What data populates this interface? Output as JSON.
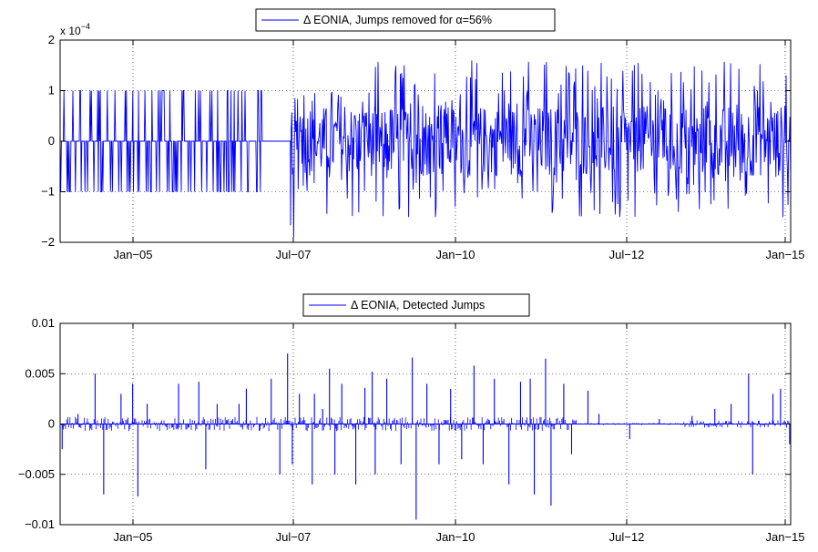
{
  "chart_data": [
    {
      "type": "line",
      "legend": "Δ EONIA, Jumps removed for α=56%",
      "legend_placement": "top-center",
      "xlabel": "",
      "ylabel": "",
      "exponent_label": "x 10",
      "exponent_power": "−4",
      "x_range": [
        "2004-03",
        "2015-01"
      ],
      "ylim": [
        -2,
        2
      ],
      "xticks": [
        "Jan−05",
        "Jul−07",
        "Jan−10",
        "Jul−12",
        "Jan−15"
      ],
      "yticks": [
        {
          "value": 2,
          "label": "2"
        },
        {
          "value": 1,
          "label": "1"
        },
        {
          "value": 0,
          "label": "0"
        },
        {
          "value": -1,
          "label": "−1"
        },
        {
          "value": -2,
          "label": "−2"
        }
      ],
      "grid": true,
      "color": "#0000ff",
      "segments": [
        {
          "start": "2004-03",
          "end": "2007-04",
          "pattern": "ternary",
          "values": [
            -1,
            0,
            1
          ],
          "density": 0.35
        },
        {
          "start": "2007-04",
          "end": "2007-08",
          "pattern": "flat",
          "values": [
            0
          ]
        },
        {
          "start": "2007-08",
          "end": "2008-11",
          "pattern": "noisy",
          "amplitude": 1.0,
          "max": 1.0,
          "min": -1.9
        },
        {
          "start": "2008-11",
          "end": "2015-01",
          "pattern": "noisy",
          "amplitude": 1.0,
          "max": 1.6,
          "min": -1.5
        }
      ]
    },
    {
      "type": "line",
      "legend": "Δ EONIA, Detected Jumps",
      "legend_placement": "top-center",
      "xlabel": "",
      "ylabel": "",
      "x_range": [
        "2004-03",
        "2015-01"
      ],
      "ylim": [
        -0.01,
        0.01
      ],
      "xticks": [
        "Jan−05",
        "Jul−07",
        "Jan−10",
        "Jul−12",
        "Jan−15"
      ],
      "yticks": [
        {
          "value": 0.01,
          "label": "0.01"
        },
        {
          "value": 0.005,
          "label": "0.005"
        },
        {
          "value": 0,
          "label": "0"
        },
        {
          "value": -0.005,
          "label": "−0.005"
        },
        {
          "value": -0.01,
          "label": "−0.01"
        }
      ],
      "grid": true,
      "color": "#0000ff",
      "spikes": [
        {
          "date": "2004-03",
          "value": -0.0025
        },
        {
          "date": "2004-06",
          "value": 0.001
        },
        {
          "date": "2004-09",
          "value": 0.005
        },
        {
          "date": "2004-10",
          "value": -0.007
        },
        {
          "date": "2005-01",
          "value": 0.003
        },
        {
          "date": "2005-03",
          "value": 0.004
        },
        {
          "date": "2005-04",
          "value": -0.0072
        },
        {
          "date": "2005-06",
          "value": 0.002
        },
        {
          "date": "2005-12",
          "value": 0.004
        },
        {
          "date": "2006-03",
          "value": 0.0042
        },
        {
          "date": "2006-04",
          "value": -0.0045
        },
        {
          "date": "2006-06",
          "value": 0.002
        },
        {
          "date": "2006-10",
          "value": 0.002
        },
        {
          "date": "2006-12",
          "value": 0.0035
        },
        {
          "date": "2007-04",
          "value": 0.0045
        },
        {
          "date": "2007-06",
          "value": -0.005
        },
        {
          "date": "2007-07",
          "value": 0.007
        },
        {
          "date": "2007-08",
          "value": -0.004
        },
        {
          "date": "2007-09",
          "value": 0.003
        },
        {
          "date": "2007-11",
          "value": -0.006
        },
        {
          "date": "2007-12",
          "value": 0.003
        },
        {
          "date": "2008-01",
          "value": 0.0015
        },
        {
          "date": "2008-02",
          "value": 0.0055
        },
        {
          "date": "2008-03",
          "value": -0.005
        },
        {
          "date": "2008-05",
          "value": 0.004
        },
        {
          "date": "2008-07",
          "value": -0.006
        },
        {
          "date": "2008-09",
          "value": 0.0036
        },
        {
          "date": "2008-10",
          "value": 0.0052
        },
        {
          "date": "2008-11",
          "value": -0.005
        },
        {
          "date": "2009-01",
          "value": 0.0045
        },
        {
          "date": "2009-03",
          "value": -0.004
        },
        {
          "date": "2009-05",
          "value": 0.0066
        },
        {
          "date": "2009-06",
          "value": -0.0095
        },
        {
          "date": "2009-08",
          "value": 0.004
        },
        {
          "date": "2009-10",
          "value": -0.004
        },
        {
          "date": "2009-12",
          "value": 0.0035
        },
        {
          "date": "2010-02",
          "value": -0.0035
        },
        {
          "date": "2010-04",
          "value": 0.0058
        },
        {
          "date": "2010-06",
          "value": -0.004
        },
        {
          "date": "2010-08",
          "value": 0.0045
        },
        {
          "date": "2010-10",
          "value": -0.006
        },
        {
          "date": "2010-12",
          "value": 0.0042
        },
        {
          "date": "2011-02",
          "value": 0.0045
        },
        {
          "date": "2011-03",
          "value": -0.007
        },
        {
          "date": "2011-05",
          "value": 0.0065
        },
        {
          "date": "2011-06",
          "value": -0.0081
        },
        {
          "date": "2011-08",
          "value": 0.004
        },
        {
          "date": "2011-10",
          "value": -0.003
        },
        {
          "date": "2011-12",
          "value": 0.0033
        },
        {
          "date": "2012-02",
          "value": 0.001
        },
        {
          "date": "2012-08",
          "value": -0.0015
        },
        {
          "date": "2013-01",
          "value": 0.0005
        },
        {
          "date": "2013-07",
          "value": 0.0008
        },
        {
          "date": "2013-11",
          "value": 0.0015
        },
        {
          "date": "2014-02",
          "value": 0.002
        },
        {
          "date": "2014-05",
          "value": 0.005
        },
        {
          "date": "2014-06",
          "value": -0.005
        },
        {
          "date": "2014-09",
          "value": 0.003
        },
        {
          "date": "2014-11",
          "value": 0.0035
        },
        {
          "date": "2014-12",
          "value": -0.002
        }
      ],
      "baseline_noise": [
        {
          "start": "2004-03",
          "end": "2011-11",
          "amplitude": 0.0007
        },
        {
          "start": "2011-11",
          "end": "2013-06",
          "amplitude": 0.0001
        },
        {
          "start": "2013-06",
          "end": "2015-01",
          "amplitude": 0.0004
        }
      ]
    }
  ]
}
